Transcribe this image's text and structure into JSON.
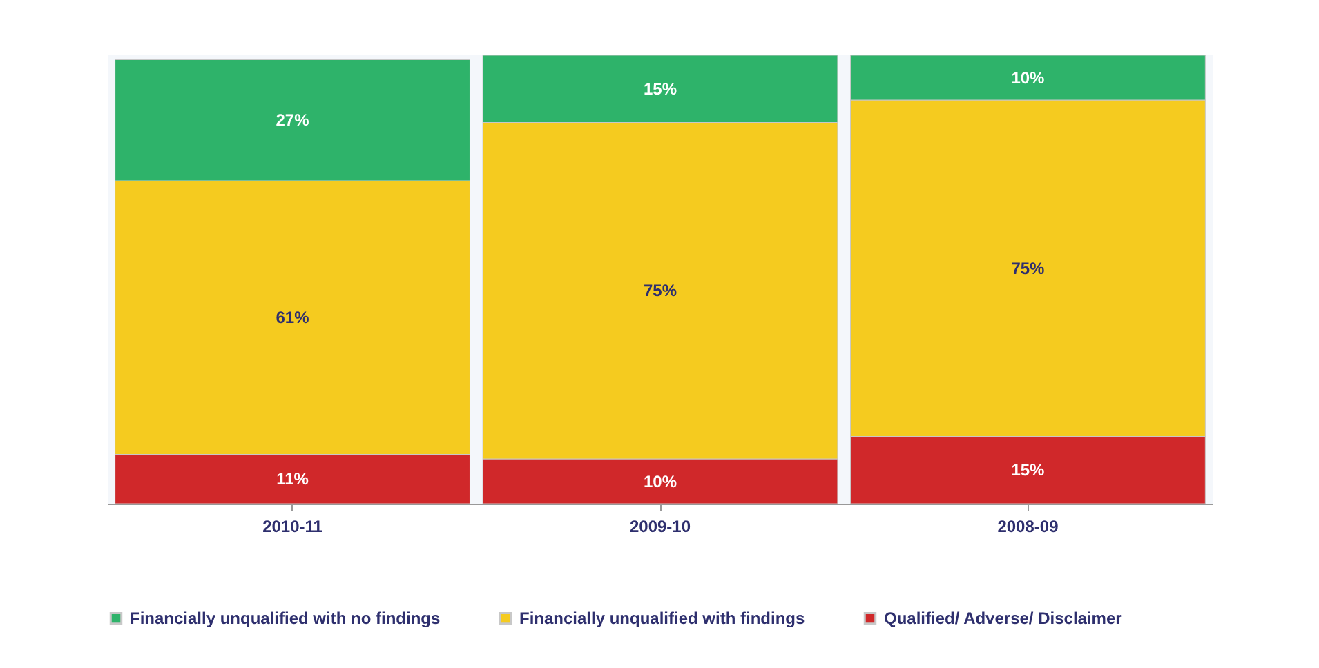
{
  "chart_data": {
    "type": "bar",
    "stacked": true,
    "categories": [
      "2010-11",
      "2009-10",
      "2008-09"
    ],
    "series": [
      {
        "name": "Qualified/ Adverse/ Disclaimer",
        "color": "#d0282a",
        "values": [
          11,
          10,
          15
        ],
        "value_labels": [
          "11%",
          "10%",
          "15%"
        ]
      },
      {
        "name": "Financially unqualified with findings",
        "color": "#f5cb1f",
        "values": [
          61,
          75,
          75
        ],
        "value_labels": [
          "61%",
          "75%",
          "75%"
        ]
      },
      {
        "name": "Financially unqualified with no findings",
        "color": "#2eb36a",
        "values": [
          27,
          15,
          10
        ],
        "value_labels": [
          "27%",
          "15%",
          "10%"
        ]
      }
    ],
    "ylim": [
      0,
      100
    ],
    "tick_labels": "x",
    "legend": "bottom"
  }
}
